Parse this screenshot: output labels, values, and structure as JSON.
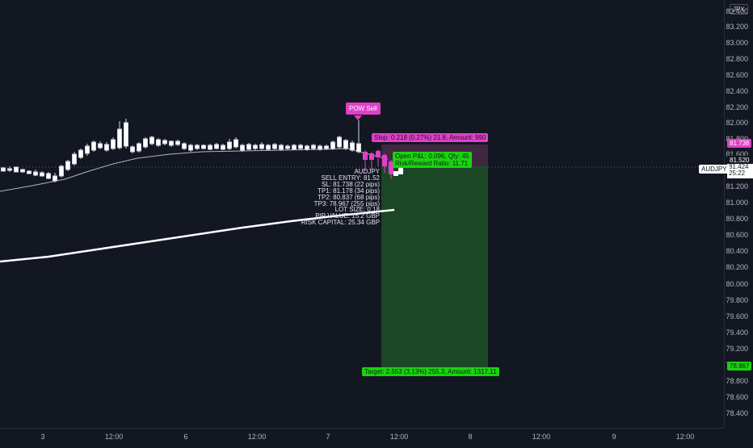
{
  "currency_button": "JPY",
  "y_ticks": [
    "83.400",
    "83.200",
    "83.000",
    "82.800",
    "82.600",
    "82.400",
    "82.200",
    "82.000",
    "81.800",
    "81.600",
    "81.200",
    "81.000",
    "80.800",
    "80.600",
    "80.400",
    "80.200",
    "80.000",
    "79.800",
    "79.600",
    "79.400",
    "79.200",
    "79.000",
    "78.800",
    "78.600",
    "78.400",
    "78.200"
  ],
  "x_ticks": [
    "3",
    "12:00",
    "6",
    "12:00",
    "7",
    "12:00",
    "8",
    "12:00",
    "9",
    "12:00"
  ],
  "symbol_tag": "AUDJPY",
  "price_labels": {
    "stop": "81.738",
    "entry": "81.520",
    "last": "81.424",
    "countdown": "25:22",
    "target": "78.967"
  },
  "signal_label": "POW Sell",
  "stop_box": "Stop: 0.218 (0.27%) 21.8, Amount: 990",
  "pnl_box": {
    "line1": "Open P&L: 0.096, Qty: 45",
    "line2": "Risk/Reward Ratio: 11.71"
  },
  "target_box": "Target: 2.553 (3.13%) 255.3, Amount: 1317.11",
  "trade_info": [
    "AUDJPY",
    "SELL ENTRY: 81.52",
    "SL: 81.738 (22 pips)",
    "TP1: 81.178 (34 pips)",
    "TP2: 80.837 (68 pips)",
    "TP3: 78.967 (255 pips)",
    "LOT SIZE: 0.18",
    "PIP VALUE: 15.2 GBP",
    "RISK CAPITAL: 25.34 GBP"
  ],
  "colors": {
    "background": "#131722",
    "signal": "#e040c8",
    "profit": "#1bd30f",
    "profit_zone": "#1e4d25",
    "risk_zone": "#4a2a45"
  },
  "chart_data": {
    "type": "candlestick",
    "symbol": "AUDJPY",
    "y_range": [
      78.2,
      83.4
    ],
    "entry": 81.52,
    "stop": 81.738,
    "target": 78.967,
    "last": 81.424
  }
}
